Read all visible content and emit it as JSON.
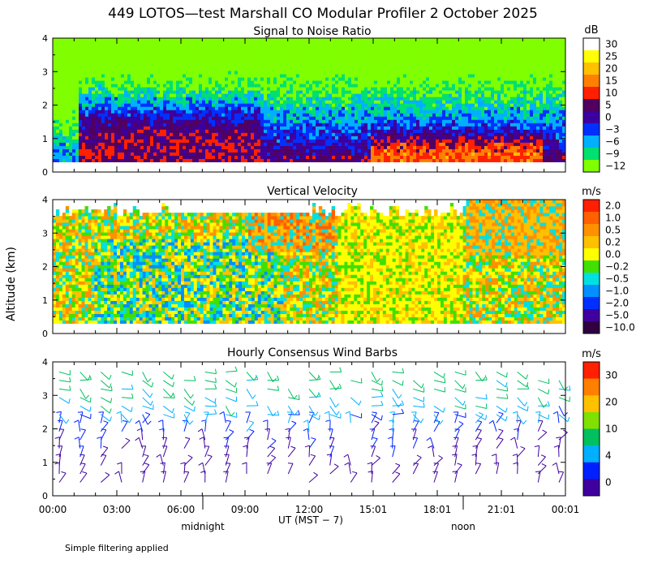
{
  "title": "449 LOTOS—test Marshall CO Modular Profiler  2 October 2025",
  "y_axis_label": "Altitude (km)",
  "x_axis_label": "UT  (MST − 7)",
  "x_ticks": [
    "00:00",
    "03:00",
    "06:00",
    "09:00",
    "12:00",
    "15:01",
    "18:01",
    "21:01",
    "00:01"
  ],
  "local_time_labels": {
    "midnight": "midnight",
    "noon": "noon"
  },
  "footnote": "Simple filtering applied",
  "colors": {
    "frame": "#000000",
    "background": "#ffffff"
  },
  "chart_data": [
    {
      "type": "heatmap",
      "title": "Signal to Noise Ratio",
      "ylabel": "Altitude (km)",
      "ylim": [
        0,
        4
      ],
      "y_ticks": [
        "0",
        "1",
        "2",
        "3",
        "4"
      ],
      "xlim_hours": [
        0,
        24
      ],
      "colorbar": {
        "unit": "dB",
        "labels": [
          "30",
          "25",
          "20",
          "15",
          "10",
          "5",
          "0",
          "−3",
          "−6",
          "−9",
          "−12"
        ],
        "colors": [
          "#ffffff",
          "#ffff00",
          "#ffc000",
          "#ff8000",
          "#ff2000",
          "#500060",
          "#3c00a0",
          "#0030ff",
          "#00b0ff",
          "#00e070",
          "#80ff00"
        ]
      },
      "description_values": {
        "near_ground_max_dB": 15,
        "upper_min_dB": -12
      }
    },
    {
      "type": "heatmap",
      "title": "Vertical Velocity",
      "ylabel": "Altitude (km)",
      "ylim": [
        0,
        4
      ],
      "y_ticks": [
        "0",
        "1",
        "2",
        "3",
        "4"
      ],
      "xlim_hours": [
        0,
        24
      ],
      "colorbar": {
        "unit": "m/s",
        "labels": [
          "2.0",
          "1.0",
          "0.5",
          "0.2",
          "0.0",
          "−0.2",
          "−0.5",
          "−1.0",
          "−2.0",
          "−5.0",
          "−10.0"
        ],
        "colors": [
          "#ff2000",
          "#ff6000",
          "#ff9000",
          "#ffc000",
          "#ffff00",
          "#40e000",
          "#00e0e0",
          "#0090ff",
          "#0030ff",
          "#4000a0",
          "#300040"
        ]
      }
    },
    {
      "type": "scatter",
      "title": "Hourly Consensus Wind Barbs",
      "ylabel": "Altitude (km)",
      "ylim": [
        0,
        4
      ],
      "y_ticks": [
        "0",
        "1",
        "2",
        "3",
        "4"
      ],
      "xlim_hours": [
        0,
        24
      ],
      "colorbar": {
        "unit": "m/s",
        "labels": [
          "30",
          "20",
          "10",
          "4",
          "0"
        ],
        "colors": [
          "#ff2000",
          "#ff8000",
          "#ffc000",
          "#80e000",
          "#00c060",
          "#00b0ff",
          "#0020ff",
          "#4000a0"
        ]
      }
    }
  ]
}
